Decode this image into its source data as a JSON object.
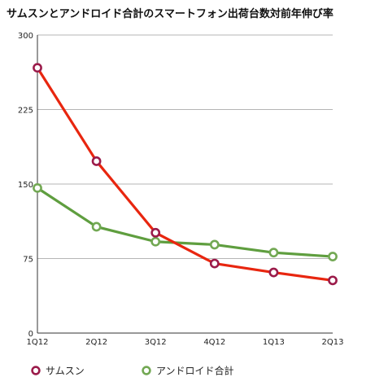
{
  "chart_data": {
    "type": "line",
    "title": "サムスンとアンドロイド合計のスマートフォン出荷台数対前年伸び率",
    "xlabel": "",
    "ylabel": "",
    "categories": [
      "1Q12",
      "2Q12",
      "3Q12",
      "4Q12",
      "1Q13",
      "2Q13"
    ],
    "ylim": [
      0,
      300
    ],
    "yticks": [
      0,
      75,
      150,
      225,
      300
    ],
    "grid": true,
    "legend": "bottom-left",
    "series": [
      {
        "name": "サムスン",
        "values": [
          267,
          173,
          101,
          70,
          61,
          53
        ],
        "line_color": "#e8260f",
        "marker_color": "#9b1b4a"
      },
      {
        "name": "アンドロイド合計",
        "values": [
          146,
          107,
          92,
          89,
          81,
          77
        ],
        "line_color": "#5f9e3f",
        "marker_color": "#72a853"
      }
    ]
  }
}
